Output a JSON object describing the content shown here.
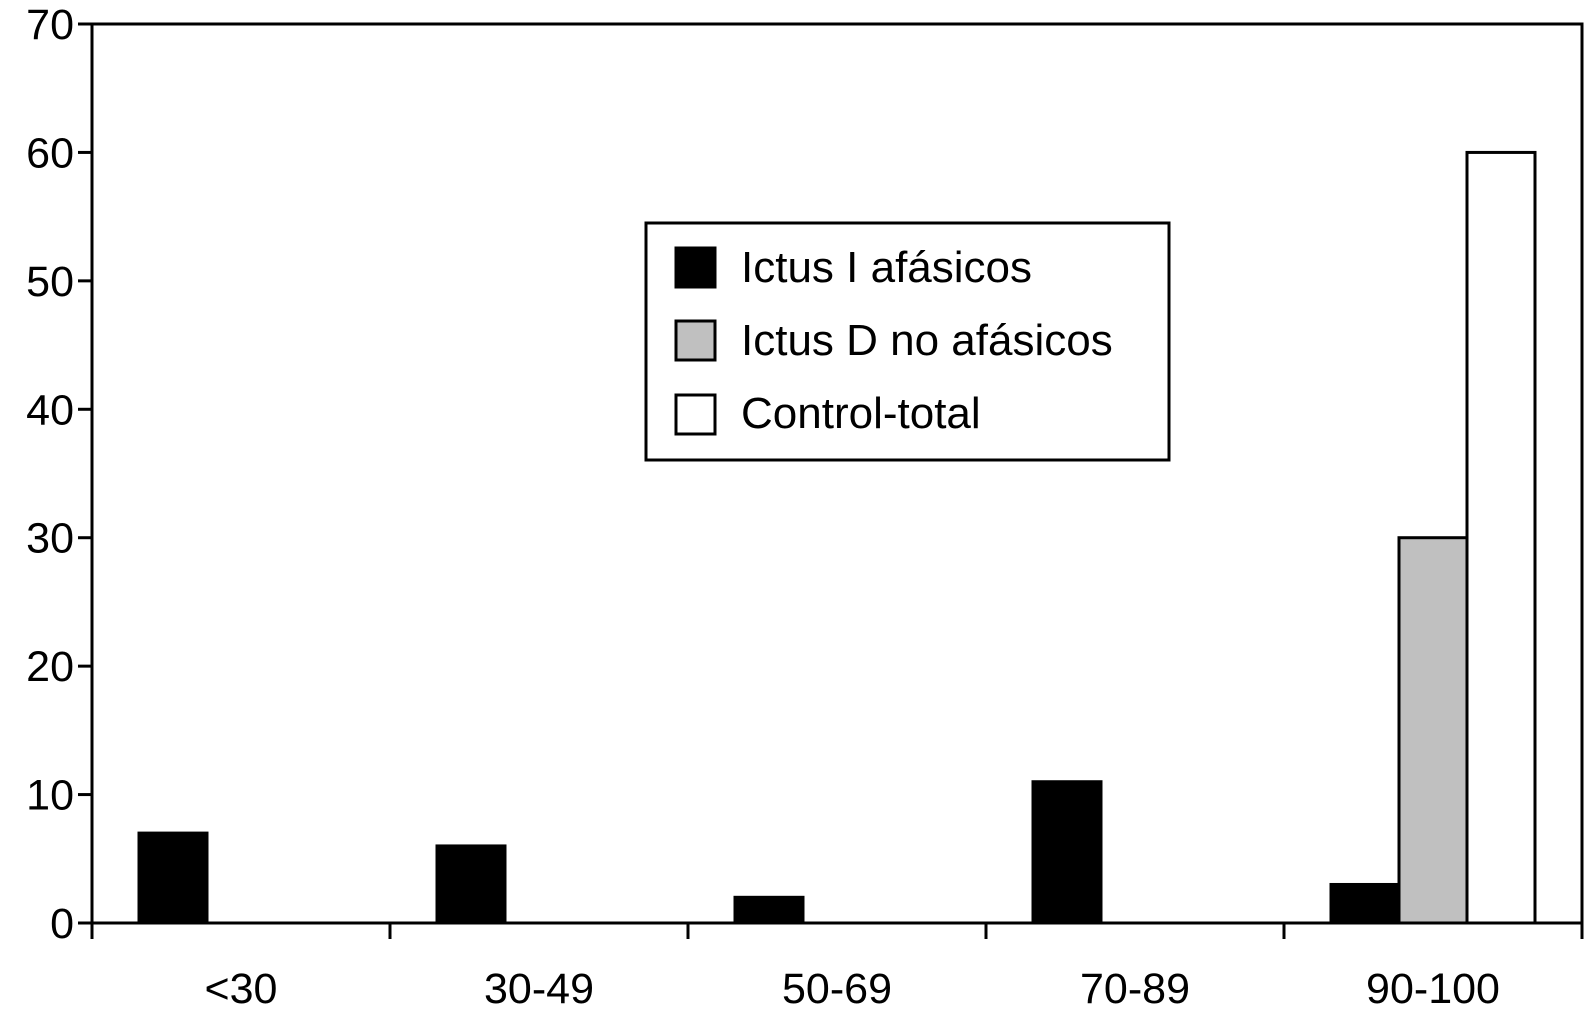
{
  "chart_data": {
    "type": "bar",
    "title": "",
    "xlabel": "",
    "ylabel": "",
    "categories": [
      "<30",
      "30-49",
      "50-69",
      "70-89",
      "90-100"
    ],
    "series": [
      {
        "name": "Ictus I afásicos",
        "color": "#000000",
        "values": [
          7,
          6,
          2,
          11,
          3
        ]
      },
      {
        "name": "Ictus D no afásicos",
        "color": "#c0c0c0",
        "values": [
          0,
          0,
          0,
          0,
          30
        ]
      },
      {
        "name": "Control-total",
        "color": "#ffffff",
        "values": [
          0,
          0,
          0,
          0,
          60
        ]
      }
    ],
    "ylim": [
      0,
      70
    ],
    "yticks": [
      0,
      10,
      20,
      30,
      40,
      50,
      60,
      70
    ],
    "legend_position": "upper-center",
    "grid": false
  }
}
